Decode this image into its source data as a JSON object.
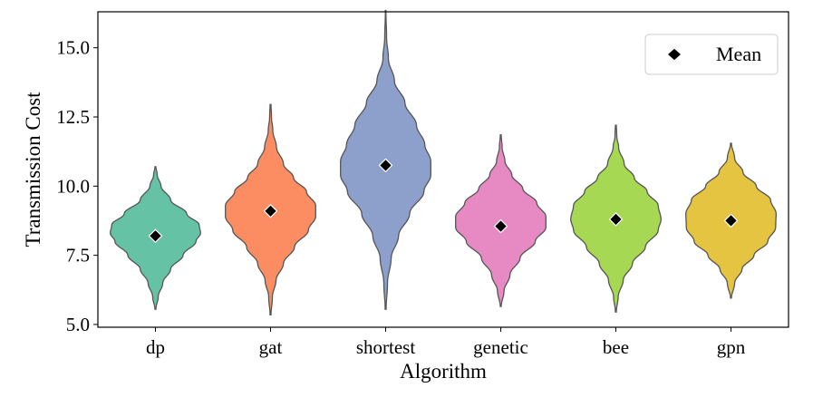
{
  "chart_data": {
    "type": "violin",
    "xlabel": "Algorithm",
    "ylabel": "Transmission Cost",
    "ylim": [
      4.9,
      16.3
    ],
    "yticks": [
      5.0,
      7.5,
      10.0,
      12.5,
      15.0
    ],
    "ytick_labels": [
      "5.0",
      "7.5",
      "10.0",
      "12.5",
      "15.0"
    ],
    "grid": false,
    "legend": {
      "placement": "top-right",
      "entries": [
        "Mean"
      ]
    },
    "series": [
      {
        "category": "dp",
        "color": "#66c2a5",
        "min": 5.55,
        "max": 10.7,
        "mean": 8.2,
        "density": [
          [
            5.55,
            0.01
          ],
          [
            6.0,
            0.06
          ],
          [
            6.5,
            0.16
          ],
          [
            7.0,
            0.33
          ],
          [
            7.5,
            0.6
          ],
          [
            8.0,
            0.88
          ],
          [
            8.3,
            0.98
          ],
          [
            8.6,
            0.95
          ],
          [
            9.0,
            0.68
          ],
          [
            9.5,
            0.33
          ],
          [
            10.0,
            0.12
          ],
          [
            10.4,
            0.04
          ],
          [
            10.7,
            0.01
          ]
        ]
      },
      {
        "category": "gat",
        "color": "#fc8d62",
        "min": 5.35,
        "max": 12.95,
        "mean": 9.1,
        "density": [
          [
            5.35,
            0.01
          ],
          [
            6.0,
            0.04
          ],
          [
            6.6,
            0.12
          ],
          [
            7.2,
            0.28
          ],
          [
            7.8,
            0.52
          ],
          [
            8.4,
            0.82
          ],
          [
            8.9,
            0.98
          ],
          [
            9.3,
            0.98
          ],
          [
            9.8,
            0.78
          ],
          [
            10.3,
            0.5
          ],
          [
            10.8,
            0.28
          ],
          [
            11.4,
            0.13
          ],
          [
            12.0,
            0.05
          ],
          [
            12.5,
            0.02
          ],
          [
            12.95,
            0.01
          ]
        ]
      },
      {
        "category": "shortest",
        "color": "#8da0cb",
        "min": 5.55,
        "max": 16.35,
        "mean": 10.75,
        "density": [
          [
            5.55,
            0.01
          ],
          [
            6.5,
            0.04
          ],
          [
            7.4,
            0.12
          ],
          [
            8.2,
            0.28
          ],
          [
            9.0,
            0.52
          ],
          [
            9.8,
            0.83
          ],
          [
            10.4,
            0.98
          ],
          [
            10.9,
            0.98
          ],
          [
            11.5,
            0.85
          ],
          [
            12.2,
            0.67
          ],
          [
            13.0,
            0.42
          ],
          [
            13.8,
            0.19
          ],
          [
            14.6,
            0.06
          ],
          [
            15.4,
            0.02
          ],
          [
            16.35,
            0.005
          ]
        ]
      },
      {
        "category": "genetic",
        "color": "#e78ac3",
        "min": 5.65,
        "max": 11.85,
        "mean": 8.55,
        "density": [
          [
            5.65,
            0.01
          ],
          [
            6.2,
            0.07
          ],
          [
            6.8,
            0.2
          ],
          [
            7.4,
            0.42
          ],
          [
            8.0,
            0.75
          ],
          [
            8.5,
            0.98
          ],
          [
            8.9,
            0.98
          ],
          [
            9.4,
            0.78
          ],
          [
            9.9,
            0.48
          ],
          [
            10.4,
            0.24
          ],
          [
            10.9,
            0.09
          ],
          [
            11.4,
            0.03
          ],
          [
            11.85,
            0.01
          ]
        ]
      },
      {
        "category": "bee",
        "color": "#a6d854",
        "min": 5.45,
        "max": 12.2,
        "mean": 8.8,
        "density": [
          [
            5.45,
            0.01
          ],
          [
            6.0,
            0.05
          ],
          [
            6.6,
            0.16
          ],
          [
            7.2,
            0.36
          ],
          [
            7.8,
            0.64
          ],
          [
            8.4,
            0.92
          ],
          [
            8.8,
            0.98
          ],
          [
            9.3,
            0.92
          ],
          [
            9.8,
            0.68
          ],
          [
            10.3,
            0.4
          ],
          [
            10.8,
            0.18
          ],
          [
            11.4,
            0.06
          ],
          [
            11.8,
            0.02
          ],
          [
            12.2,
            0.01
          ]
        ]
      },
      {
        "category": "gpn",
        "color": "#e5c442",
        "min": 5.95,
        "max": 11.55,
        "mean": 8.75,
        "density": [
          [
            5.95,
            0.01
          ],
          [
            6.5,
            0.08
          ],
          [
            7.0,
            0.24
          ],
          [
            7.5,
            0.5
          ],
          [
            8.0,
            0.8
          ],
          [
            8.5,
            0.97
          ],
          [
            9.0,
            0.98
          ],
          [
            9.5,
            0.86
          ],
          [
            10.0,
            0.55
          ],
          [
            10.5,
            0.26
          ],
          [
            11.0,
            0.08
          ],
          [
            11.55,
            0.01
          ]
        ]
      }
    ]
  }
}
